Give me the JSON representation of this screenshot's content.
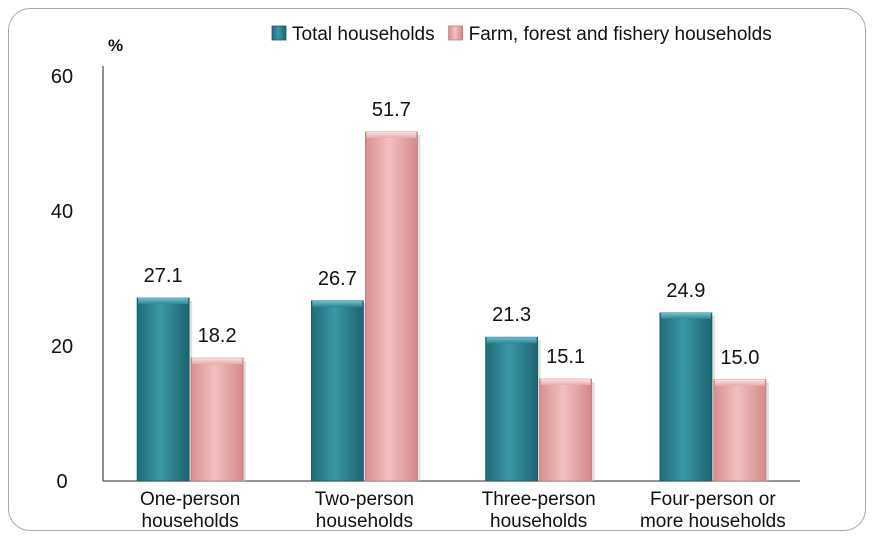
{
  "chart_data": {
    "type": "bar",
    "unit_label": "%",
    "categories": [
      [
        "One-person",
        "households"
      ],
      [
        "Two-person",
        "households"
      ],
      [
        "Three-person",
        "households"
      ],
      [
        "Four-person or",
        "more households"
      ]
    ],
    "series": [
      {
        "name": "Total households",
        "color": "#2a7f8f",
        "values": [
          27.1,
          26.7,
          21.3,
          24.9
        ],
        "labels": [
          "27.1",
          "26.7",
          "21.3",
          "24.9"
        ]
      },
      {
        "name": "Farm, forest and fishery households",
        "color": "#e6a3a3",
        "values": [
          18.2,
          51.7,
          15.1,
          15.0
        ],
        "labels": [
          "18.2",
          "51.7",
          "15.1",
          "15.0"
        ]
      }
    ],
    "yticks": [
      0,
      20,
      40,
      60
    ],
    "ylim": [
      0,
      60
    ],
    "grid": false,
    "legend_position": "top"
  }
}
